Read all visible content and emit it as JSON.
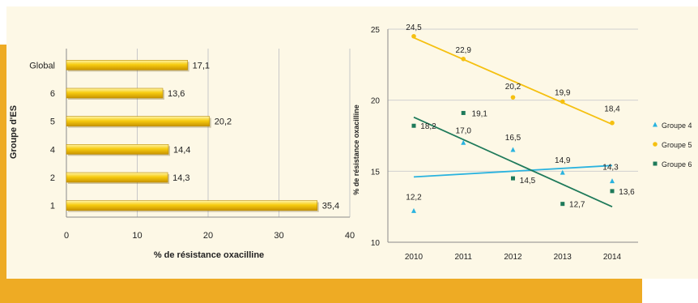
{
  "chart_data": [
    {
      "type": "bar",
      "orientation": "horizontal",
      "categories": [
        "Global",
        "6",
        "5",
        "4",
        "2",
        "1"
      ],
      "values": [
        17.1,
        13.6,
        20.2,
        14.4,
        14.3,
        35.4
      ],
      "value_labels": [
        "17,1",
        "13,6",
        "20,2",
        "14,4",
        "14,3",
        "35,4"
      ],
      "title": "",
      "xlabel": "% de résistance oxacilline",
      "ylabel": "Groupe d'ES",
      "xlim": [
        0,
        40
      ],
      "xticks": [
        "0",
        "10",
        "20",
        "30",
        "40"
      ],
      "grid": true,
      "bar_color": "#f5c400"
    },
    {
      "type": "scatter",
      "title": "",
      "x": [
        2010,
        2011,
        2012,
        2013,
        2014
      ],
      "xticks": [
        "2010",
        "2011",
        "2012",
        "2013",
        "2014"
      ],
      "ylabel": "% de résistance oxacilline",
      "ylim": [
        10,
        25
      ],
      "yticks": [
        "10",
        "15",
        "20",
        "25"
      ],
      "grid": true,
      "legend_position": "right",
      "series": [
        {
          "name": "Groupe 4",
          "color": "#2ab3df",
          "marker": "triangle",
          "values": [
            12.2,
            17.0,
            16.5,
            14.9,
            14.3
          ],
          "labels": [
            "12,2",
            "17,0",
            "16,5",
            "14,9",
            "14,3"
          ],
          "trend": [
            14.6,
            15.4
          ]
        },
        {
          "name": "Groupe 5",
          "color": "#f5c010",
          "marker": "circle",
          "values": [
            24.5,
            22.9,
            20.2,
            19.9,
            18.4
          ],
          "labels": [
            "24,5",
            "22,9",
            "20,2",
            "19,9",
            "18,4"
          ],
          "trend": [
            24.4,
            18.3
          ]
        },
        {
          "name": "Groupe 6",
          "color": "#1e7a5a",
          "marker": "square",
          "values": [
            18.2,
            19.1,
            14.5,
            12.7,
            13.6
          ],
          "labels": [
            "18,2",
            "19,1",
            "14,5",
            "12,7",
            "13,6"
          ],
          "trend": [
            18.8,
            12.5
          ]
        }
      ]
    }
  ]
}
